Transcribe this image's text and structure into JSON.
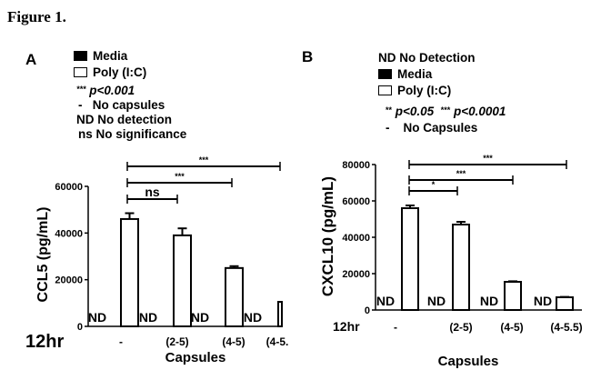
{
  "figure_title": "Figure 1.",
  "legend_a": {
    "panel": "A",
    "media": "Media",
    "poly": "Poly (I:C)",
    "stars": "***",
    "p": "p<0.001",
    "dash": "-",
    "no_caps": "No capsules",
    "nd": "ND",
    "nd_text": "No detection",
    "ns": "ns",
    "ns_text": "No significance"
  },
  "legend_b": {
    "panel": "B",
    "nd": "ND",
    "nd_text": "No Detection",
    "media": "Media",
    "poly": "Poly (I:C)",
    "stars2": "**",
    "p1": "p<0.05",
    "stars3": "***",
    "p2": "p<0.0001",
    "dash": "-",
    "no_caps": "No Capsules"
  },
  "chart_data": [
    {
      "type": "bar",
      "panel": "A",
      "ylabel": "CCL5 (pg/mL)",
      "xlabel": "Capsules",
      "row_label": "12hr",
      "ylim": [
        0,
        60000
      ],
      "yticks": [
        "0",
        "20000",
        "40000",
        "60000"
      ],
      "categories": [
        "-",
        "(2-5)",
        "(4-5)",
        "(4-5."
      ],
      "series": [
        {
          "name": "Media",
          "values": [
            0,
            0,
            0,
            0
          ],
          "labels": [
            "ND",
            "ND",
            "ND",
            "ND"
          ]
        },
        {
          "name": "Poly (I:C)",
          "values": [
            46000,
            39000,
            25000,
            10500
          ],
          "errors": [
            2500,
            3000,
            800,
            0
          ]
        }
      ],
      "comparisons": [
        {
          "from": 0,
          "to": 1,
          "label": "ns"
        },
        {
          "from": 0,
          "to": 2,
          "label": "***"
        },
        {
          "from": 0,
          "to": 3,
          "label": "***"
        }
      ]
    },
    {
      "type": "bar",
      "panel": "B",
      "ylabel": "CXCL10 (pg/mL)",
      "xlabel": "Capsules",
      "row_label": "12hr",
      "ylim": [
        0,
        80000
      ],
      "yticks": [
        "0",
        "20000",
        "40000",
        "60000",
        "80000"
      ],
      "categories": [
        "-",
        "(2-5)",
        "(4-5)",
        "(4-5.5)"
      ],
      "series": [
        {
          "name": "Media",
          "values": [
            0,
            0,
            0,
            0
          ],
          "labels": [
            "ND",
            "ND",
            "ND",
            "ND"
          ]
        },
        {
          "name": "Poly (I:C)",
          "values": [
            56000,
            47000,
            15500,
            7000
          ],
          "errors": [
            1500,
            1500,
            300,
            200
          ]
        }
      ],
      "comparisons": [
        {
          "from": 0,
          "to": 1,
          "label": "*"
        },
        {
          "from": 0,
          "to": 2,
          "label": "***"
        },
        {
          "from": 0,
          "to": 3,
          "label": "***"
        }
      ]
    }
  ]
}
